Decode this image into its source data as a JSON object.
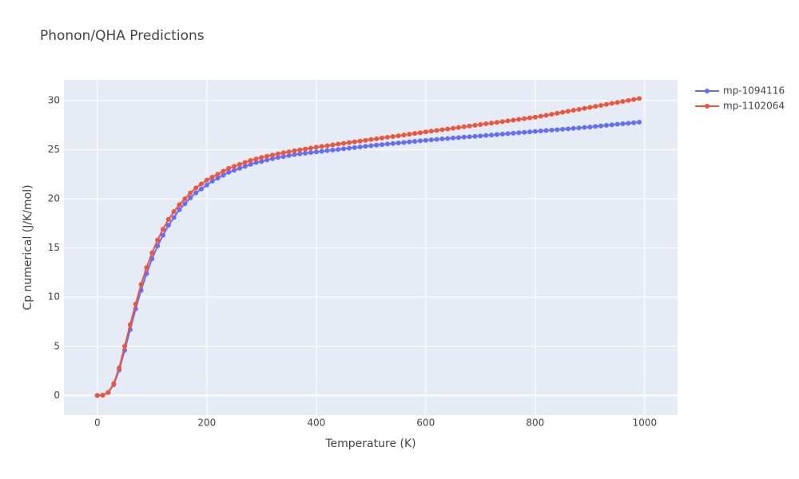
{
  "chart_data": {
    "type": "line",
    "title": "Phonon/QHA Predictions",
    "x_label": "Temperature (K)",
    "y_label": "Cp numerical (J/K/mol)",
    "x": [
      0,
      10,
      20,
      30,
      40,
      50,
      60,
      70,
      80,
      90,
      100,
      110,
      120,
      130,
      140,
      150,
      160,
      170,
      180,
      190,
      200,
      210,
      220,
      230,
      240,
      250,
      260,
      270,
      280,
      290,
      300,
      310,
      320,
      330,
      340,
      350,
      360,
      370,
      380,
      390,
      400,
      410,
      420,
      430,
      440,
      450,
      460,
      470,
      480,
      490,
      500,
      510,
      520,
      530,
      540,
      550,
      560,
      570,
      580,
      590,
      600,
      610,
      620,
      630,
      640,
      650,
      660,
      670,
      680,
      690,
      700,
      710,
      720,
      730,
      740,
      750,
      760,
      770,
      780,
      790,
      800,
      810,
      820,
      830,
      840,
      850,
      860,
      870,
      880,
      890,
      900,
      910,
      920,
      930,
      940,
      950,
      960,
      970,
      980,
      990
    ],
    "series": [
      {
        "name": "mp-1094116",
        "color": "#636efa",
        "values": [
          0,
          0.03,
          0.3,
          1.1,
          2.6,
          4.6,
          6.7,
          8.8,
          10.7,
          12.4,
          13.9,
          15.2,
          16.3,
          17.3,
          18.1,
          18.9,
          19.5,
          20.1,
          20.6,
          21.0,
          21.4,
          21.8,
          22.1,
          22.4,
          22.7,
          22.9,
          23.1,
          23.3,
          23.5,
          23.7,
          23.8,
          23.95,
          24.08,
          24.2,
          24.3,
          24.4,
          24.5,
          24.57,
          24.64,
          24.7,
          24.77,
          24.83,
          24.9,
          24.96,
          25.02,
          25.09,
          25.15,
          25.21,
          25.27,
          25.34,
          25.4,
          25.46,
          25.51,
          25.57,
          25.62,
          25.68,
          25.73,
          25.79,
          25.84,
          25.9,
          25.95,
          26.0,
          26.04,
          26.09,
          26.13,
          26.18,
          26.22,
          26.27,
          26.31,
          26.36,
          26.4,
          26.45,
          26.49,
          26.54,
          26.58,
          26.63,
          26.67,
          26.72,
          26.76,
          26.81,
          26.85,
          26.9,
          26.94,
          26.99,
          27.03,
          27.08,
          27.12,
          27.17,
          27.21,
          27.26,
          27.3,
          27.36,
          27.41,
          27.47,
          27.52,
          27.58,
          27.63,
          27.69,
          27.74,
          27.8
        ]
      },
      {
        "name": "mp-1102064",
        "color": "#ef553b",
        "values": [
          0,
          0.03,
          0.3,
          1.2,
          2.8,
          5.0,
          7.2,
          9.3,
          11.3,
          13.0,
          14.5,
          15.8,
          16.9,
          17.9,
          18.7,
          19.4,
          20.0,
          20.6,
          21.1,
          21.5,
          21.9,
          22.2,
          22.5,
          22.8,
          23.1,
          23.3,
          23.5,
          23.7,
          23.9,
          24.05,
          24.2,
          24.33,
          24.45,
          24.57,
          24.68,
          24.78,
          24.88,
          24.98,
          25.07,
          25.16,
          25.25,
          25.33,
          25.4,
          25.48,
          25.56,
          25.64,
          25.72,
          25.79,
          25.87,
          25.95,
          26.03,
          26.1,
          26.18,
          26.26,
          26.34,
          26.41,
          26.49,
          26.57,
          26.65,
          26.72,
          26.8,
          26.88,
          26.95,
          27.03,
          27.1,
          27.18,
          27.25,
          27.33,
          27.4,
          27.48,
          27.55,
          27.63,
          27.7,
          27.78,
          27.85,
          27.93,
          28.0,
          28.08,
          28.15,
          28.23,
          28.3,
          28.4,
          28.5,
          28.6,
          28.7,
          28.8,
          28.9,
          29.0,
          29.1,
          29.2,
          29.3,
          29.4,
          29.5,
          29.6,
          29.7,
          29.8,
          29.9,
          30.0,
          30.1,
          30.2
        ]
      }
    ],
    "xlim": [
      -61,
      1060
    ],
    "ylim": [
      -2.0,
      32.1
    ],
    "xticks": [
      0,
      200,
      400,
      600,
      800,
      1000
    ],
    "yticks": [
      0,
      5,
      10,
      15,
      20,
      25,
      30
    ],
    "grid": true,
    "legend": "top-right"
  }
}
